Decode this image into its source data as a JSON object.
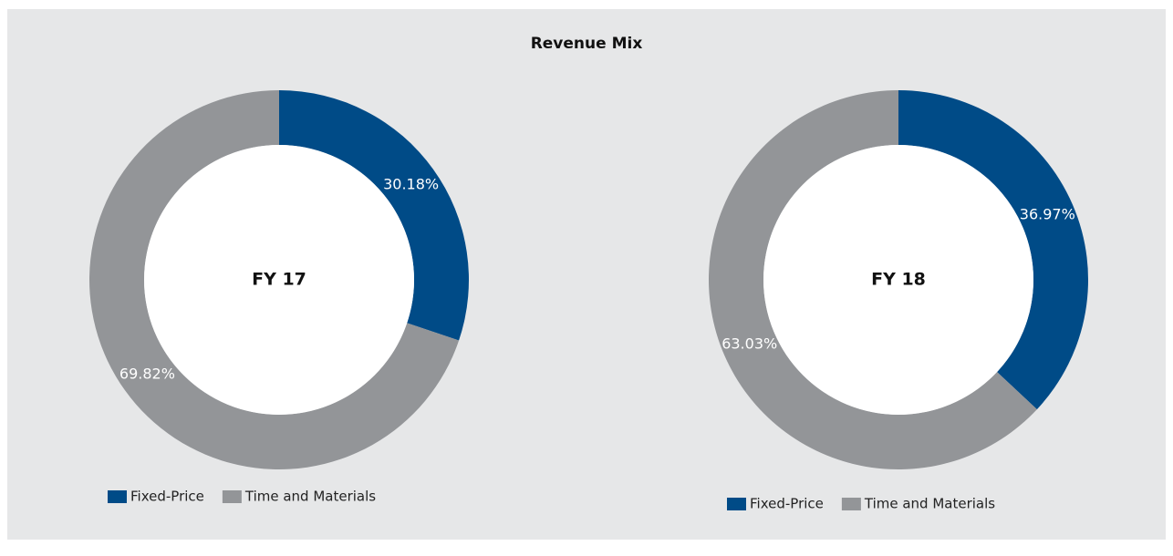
{
  "title": "Revenue Mix",
  "chart_data": [
    {
      "type": "pie",
      "donut": true,
      "center_label": "FY 17",
      "categories": [
        "Fixed-Price",
        "Time and Materials"
      ],
      "values": [
        30.18,
        69.82
      ],
      "value_labels": [
        "30.18%",
        "69.82%"
      ],
      "colors": [
        "#004b87",
        "#939598"
      ],
      "legend": "bottom"
    },
    {
      "type": "pie",
      "donut": true,
      "center_label": "FY 18",
      "categories": [
        "Fixed-Price",
        "Time and Materials"
      ],
      "values": [
        36.97,
        63.03
      ],
      "value_labels": [
        "36.97%",
        "63.03%"
      ],
      "colors": [
        "#004b87",
        "#939598"
      ],
      "legend": "bottom"
    }
  ]
}
